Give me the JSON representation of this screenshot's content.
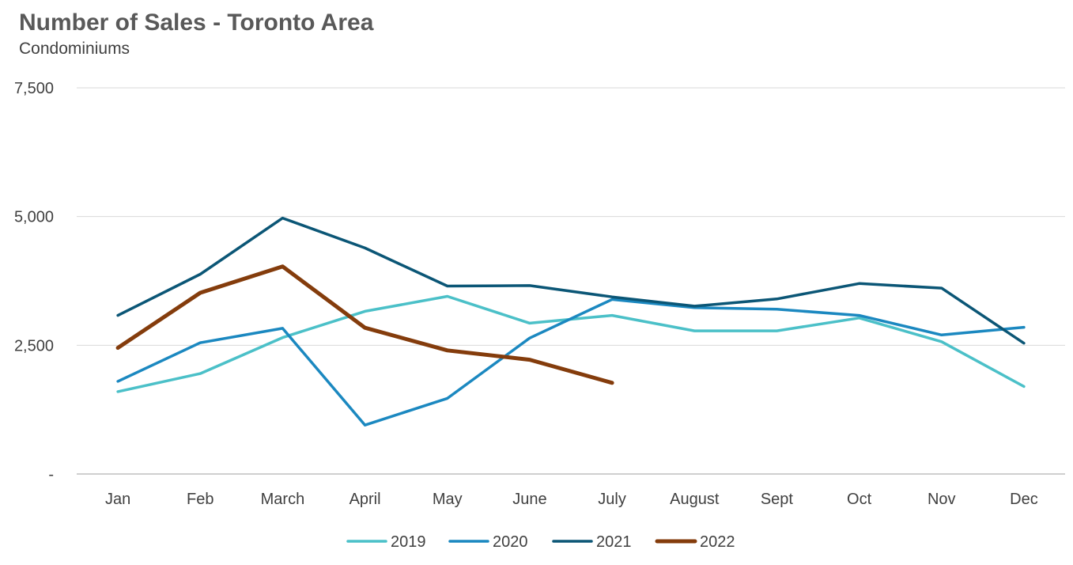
{
  "chart_data": {
    "type": "line",
    "title": "Number of Sales - Toronto Area",
    "subtitle": "Condominiums",
    "categories": [
      "Jan",
      "Feb",
      "March",
      "April",
      "May",
      "June",
      "July",
      "August",
      "Sept",
      "Oct",
      "Nov",
      "Dec"
    ],
    "y_ticks": [
      {
        "value": 0,
        "label": "-"
      },
      {
        "value": 2500,
        "label": "2,500"
      },
      {
        "value": 5000,
        "label": "5,000"
      },
      {
        "value": 7500,
        "label": "7,500"
      }
    ],
    "ylim": [
      0,
      7500
    ],
    "grid": true,
    "legend_position": "bottom",
    "series": [
      {
        "name": "2019",
        "color": "#4bc0c8",
        "width": 3.5,
        "values": [
          1600,
          1950,
          2650,
          3160,
          3450,
          2930,
          3080,
          2780,
          2780,
          3030,
          2570,
          1700
        ]
      },
      {
        "name": "2020",
        "color": "#1b88c0",
        "width": 3.5,
        "values": [
          1800,
          2550,
          2830,
          950,
          1470,
          2640,
          3390,
          3230,
          3200,
          3080,
          2700,
          2850
        ]
      },
      {
        "name": "2021",
        "color": "#0b5676",
        "width": 3.5,
        "values": [
          3080,
          3880,
          4970,
          4390,
          3650,
          3660,
          3440,
          3260,
          3400,
          3700,
          3610,
          2540
        ]
      },
      {
        "name": "2022",
        "color": "#843c0c",
        "width": 5,
        "values": [
          2450,
          3520,
          4030,
          2840,
          2400,
          2220,
          1770,
          null,
          null,
          null,
          null,
          null
        ]
      }
    ]
  }
}
